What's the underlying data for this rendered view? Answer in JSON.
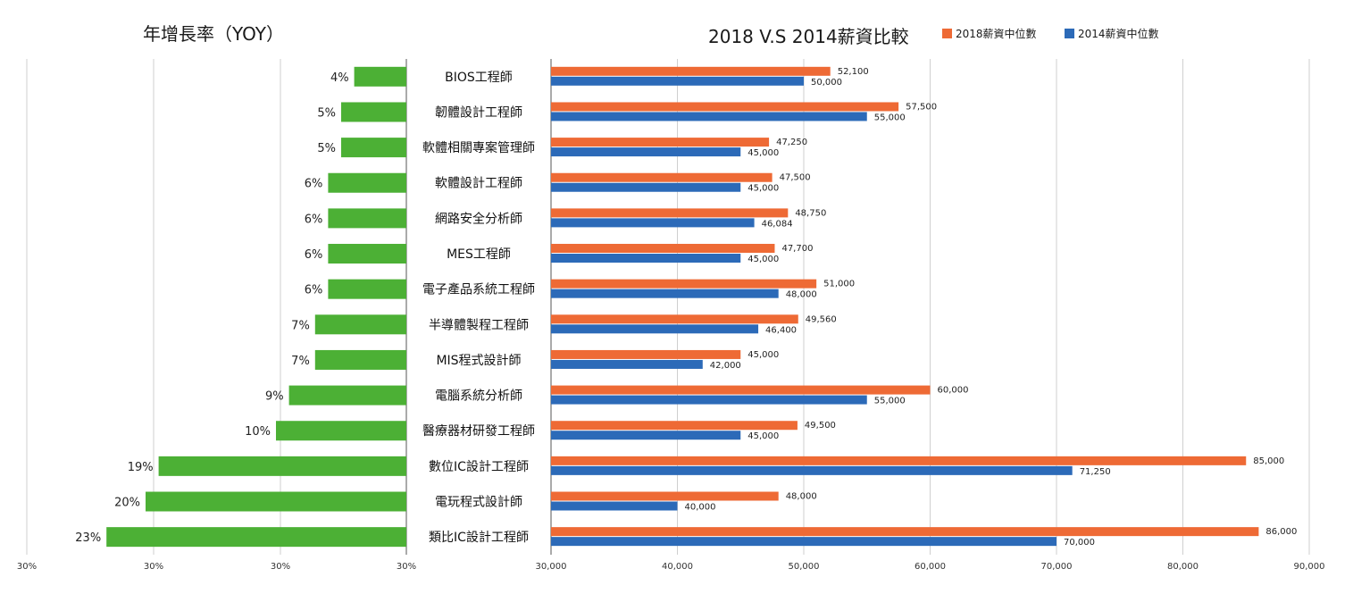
{
  "chart_data": [
    {
      "type": "bar",
      "orientation": "horizontal",
      "direction": "right-to-left",
      "title": "年增長率（YOY）",
      "categories": [
        "BIOS工程師",
        "韌體設計工程師",
        "軟體相關專案管理師",
        "軟體設計工程師",
        "網路安全分析師",
        "MES工程師",
        "電子產品系統工程師",
        "半導體製程工程師",
        "MIS程式設計師",
        "電腦系統分析師",
        "醫療器材研發工程師",
        "數位IC設計工程師",
        "電玩程式設計師",
        "類比IC設計工程師"
      ],
      "values": [
        4,
        5,
        5,
        6,
        6,
        6,
        6,
        7,
        7,
        9,
        10,
        19,
        20,
        23
      ],
      "value_labels": [
        "4%",
        "5%",
        "5%",
        "6%",
        "6%",
        "6%",
        "6%",
        "7%",
        "7%",
        "9%",
        "10%",
        "19%",
        "20%",
        "23%"
      ],
      "tick_labels": [
        "30%",
        "30%",
        "30%",
        "30%"
      ],
      "color": "#4cb035",
      "grid": true
    },
    {
      "type": "bar",
      "orientation": "horizontal",
      "title": "2018 V.S 2014薪資比較",
      "categories": [
        "BIOS工程師",
        "韌體設計工程師",
        "軟體相關專案管理師",
        "軟體設計工程師",
        "網路安全分析師",
        "MES工程師",
        "電子產品系統工程師",
        "半導體製程工程師",
        "MIS程式設計師",
        "電腦系統分析師",
        "醫療器材研發工程師",
        "數位IC設計工程師",
        "電玩程式設計師",
        "類比IC設計工程師"
      ],
      "series": [
        {
          "name": "2018薪資中位數",
          "color": "#ee6a35",
          "values": [
            52100,
            57500,
            47250,
            47500,
            48750,
            47700,
            51000,
            49560,
            45000,
            60000,
            49500,
            85000,
            48000,
            86000
          ],
          "labels": [
            "52,100",
            "57,500",
            "47,250",
            "47,500",
            "48,750",
            "47,700",
            "51,000",
            "49,560",
            "45,000",
            "60,000",
            "49,500",
            "85,000",
            "48,000",
            "86,000"
          ]
        },
        {
          "name": "2014薪資中位數",
          "color": "#2c6ab8",
          "values": [
            50000,
            55000,
            45000,
            45000,
            46084,
            45000,
            48000,
            46400,
            42000,
            55000,
            45000,
            71250,
            40000,
            70000
          ],
          "labels": [
            "50,000",
            "55,000",
            "45,000",
            "45,000",
            "46,084",
            "45,000",
            "48,000",
            "46,400",
            "42,000",
            "55,000",
            "45,000",
            "71,250",
            "40,000",
            "70,000"
          ]
        }
      ],
      "xlim": [
        30000,
        90000
      ],
      "tick_values": [
        30000,
        40000,
        50000,
        60000,
        70000,
        80000,
        90000
      ],
      "tick_labels": [
        "30,000",
        "40,000",
        "50,000",
        "60,000",
        "70,000",
        "80,000",
        "90,000"
      ],
      "legend_position": "top-right",
      "grid": true
    }
  ]
}
